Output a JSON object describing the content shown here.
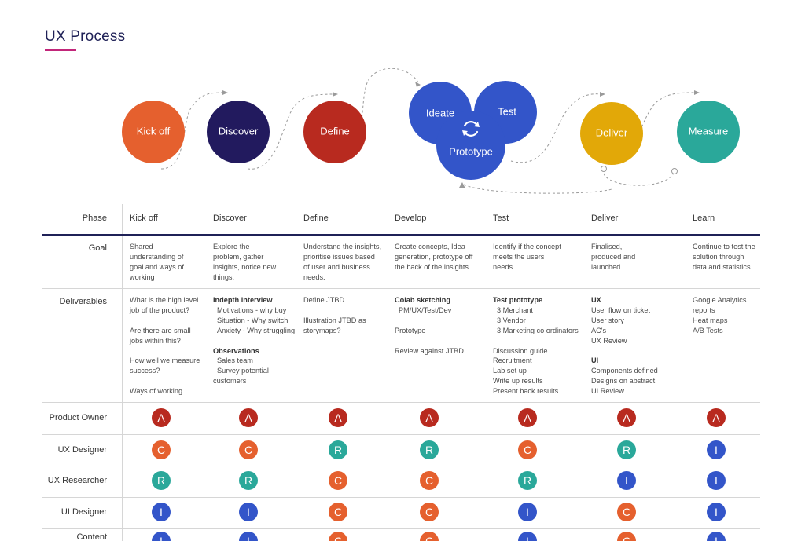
{
  "title": "UX Process",
  "diagram": {
    "circles": [
      {
        "label": "Kick off",
        "color": "#e5602e"
      },
      {
        "label": "Discover",
        "color": "#221a5e"
      },
      {
        "label": "Define",
        "color": "#b82a1f"
      },
      {
        "label": "Ideate",
        "color": "#3355c9"
      },
      {
        "label": "Test",
        "color": "#3355c9"
      },
      {
        "label": "Prototype",
        "color": "#3355c9"
      },
      {
        "label": "Deliver",
        "color": "#e2a808"
      },
      {
        "label": "Measure",
        "color": "#2aa89a"
      }
    ],
    "cycle_icon": "refresh-icon"
  },
  "table": {
    "phase_label": "Phase",
    "phases": [
      "Kick off",
      "Discover",
      "Define",
      "Develop",
      "Test",
      "Deliver",
      "Learn"
    ],
    "goal_label": "Goal",
    "goals": [
      "Shared understanding of goal and ways of working",
      "Explore the problem, gather insights, notice new things.",
      "Understand the insights, prioritise issues based of user and business needs.",
      "Create concepts, Idea generation, prototype off the back of the insights.",
      "Identify if the concept meets the users needs.",
      "Finalised, produced and launched.",
      "Continue to test the solution through data and statistics"
    ],
    "deliverables_label": "Deliverables",
    "deliverables": {
      "kickoff": [
        "What is the high level job of the product?",
        "Are there are small jobs within this?",
        "How well we measure success?",
        "Ways of working"
      ],
      "discover": {
        "h1": "Indepth interview",
        "items1": [
          "Motivations - why buy",
          "Situation - Why switch",
          "Anxiety - Why struggling"
        ],
        "h2": "Observations",
        "items2": [
          "Sales team",
          "Survey potential"
        ],
        "tail": "customers"
      },
      "define": [
        "Define JTBD",
        "Illustration JTBD as storymaps?"
      ],
      "develop": {
        "h1": "Colab sketching",
        "item1": "PM/UX/Test/Dev",
        "p1": "Prototype",
        "p2": "Review against JTBD"
      },
      "test": {
        "h1": "Test prototype",
        "items1": [
          "3 Merchant",
          "3 Vendor",
          "3 Marketing co ordinators"
        ],
        "items2": [
          "Discussion guide",
          "Recruitment",
          "Lab set up",
          "Write up results",
          "Present back results"
        ]
      },
      "deliver": {
        "h1": "UX",
        "items1": [
          "User flow on ticket",
          "User story",
          "AC's",
          "UX Review"
        ],
        "h2": "UI",
        "items2": [
          "Components defined",
          "Designs on abstract",
          "UI Review"
        ]
      },
      "learn": [
        "Google Analytics reports",
        "Heat maps",
        "A/B Tests"
      ]
    },
    "roles": [
      {
        "name": "Product Owner",
        "values": [
          "A",
          "A",
          "A",
          "A",
          "A",
          "A",
          "A"
        ]
      },
      {
        "name": "UX Designer",
        "values": [
          "C",
          "C",
          "R",
          "R",
          "C",
          "R",
          "I"
        ]
      },
      {
        "name": "UX Researcher",
        "values": [
          "R",
          "R",
          "C",
          "C",
          "R",
          "I",
          "I"
        ]
      },
      {
        "name": "UI Designer",
        "values": [
          "I",
          "I",
          "C",
          "C",
          "I",
          "C",
          "I"
        ]
      },
      {
        "name": "Content",
        "values": [
          "I",
          "I",
          "C",
          "C",
          "I",
          "C",
          "I"
        ]
      }
    ],
    "badge_colors": {
      "A": "#b82a1f",
      "C": "#e5602e",
      "R": "#2aa89a",
      "I": "#3355c9"
    }
  }
}
